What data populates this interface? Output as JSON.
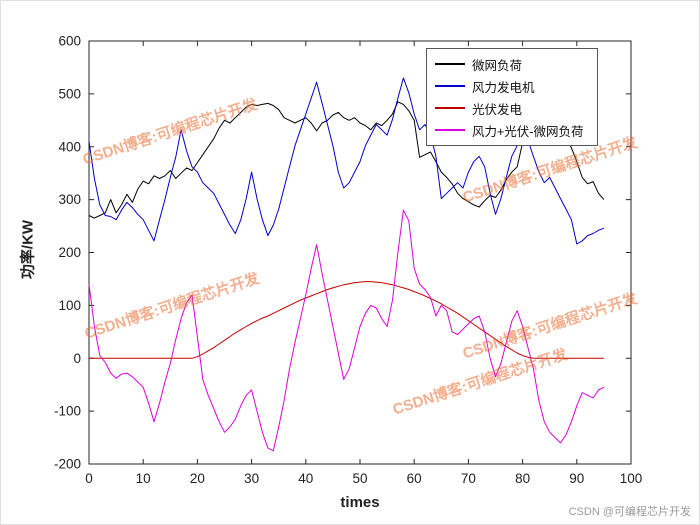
{
  "figure": {
    "background": "#ffffff"
  },
  "chart_data": {
    "type": "line",
    "title": "",
    "xlabel": "times",
    "ylabel": "功率/KW",
    "xlim": [
      0,
      100
    ],
    "ylim": [
      -200,
      600
    ],
    "xticks": [
      0,
      10,
      20,
      30,
      40,
      50,
      60,
      70,
      80,
      90,
      100
    ],
    "yticks": [
      -200,
      -100,
      0,
      100,
      200,
      300,
      400,
      500,
      600
    ],
    "grid": false,
    "legend_position": "top-right-inside",
    "x": [
      0,
      1,
      2,
      3,
      4,
      5,
      6,
      7,
      8,
      9,
      10,
      11,
      12,
      13,
      14,
      15,
      16,
      17,
      18,
      19,
      20,
      21,
      22,
      23,
      24,
      25,
      26,
      27,
      28,
      29,
      30,
      31,
      32,
      33,
      34,
      35,
      36,
      37,
      38,
      39,
      40,
      41,
      42,
      43,
      44,
      45,
      46,
      47,
      48,
      49,
      50,
      51,
      52,
      53,
      54,
      55,
      56,
      57,
      58,
      59,
      60,
      61,
      62,
      63,
      64,
      65,
      66,
      67,
      68,
      69,
      70,
      71,
      72,
      73,
      74,
      75,
      76,
      77,
      78,
      79,
      80,
      81,
      82,
      83,
      84,
      85,
      86,
      87,
      88,
      89,
      90,
      91,
      92,
      93,
      94,
      95
    ],
    "series": [
      {
        "name": "微网负荷",
        "color": "#000000",
        "values": [
          270,
          265,
          270,
          275,
          300,
          275,
          290,
          310,
          295,
          320,
          335,
          330,
          345,
          340,
          345,
          355,
          340,
          350,
          360,
          355,
          370,
          385,
          400,
          415,
          435,
          450,
          445,
          455,
          465,
          475,
          480,
          478,
          480,
          482,
          478,
          470,
          455,
          450,
          445,
          450,
          455,
          445,
          430,
          445,
          450,
          460,
          465,
          455,
          450,
          455,
          445,
          440,
          432,
          445,
          440,
          450,
          462,
          485,
          480,
          468,
          450,
          380,
          385,
          390,
          372,
          352,
          342,
          330,
          312,
          302,
          296,
          290,
          286,
          298,
          308,
          304,
          318,
          338,
          352,
          362,
          408,
          420,
          414,
          428,
          492,
          478,
          458,
          432,
          420,
          398,
          372,
          342,
          330,
          334,
          312,
          300
        ]
      },
      {
        "name": "风力发电机",
        "color": "#0000C8",
        "values": [
          410,
          340,
          290,
          270,
          268,
          262,
          280,
          295,
          285,
          272,
          262,
          242,
          222,
          262,
          300,
          342,
          380,
          432,
          392,
          362,
          352,
          332,
          322,
          312,
          292,
          272,
          252,
          236,
          262,
          302,
          352,
          302,
          262,
          232,
          252,
          282,
          322,
          362,
          402,
          432,
          462,
          492,
          522,
          482,
          442,
          402,
          352,
          322,
          332,
          352,
          372,
          402,
          422,
          442,
          432,
          422,
          452,
          492,
          530,
          502,
          462,
          432,
          442,
          422,
          382,
          302,
          312,
          322,
          332,
          322,
          352,
          372,
          382,
          362,
          312,
          272,
          302,
          342,
          382,
          402,
          422,
          412,
          382,
          352,
          332,
          342,
          322,
          302,
          282,
          262,
          216,
          222,
          232,
          236,
          242,
          246
        ]
      },
      {
        "name": "光伏发电",
        "color": "#C00000",
        "values": [
          0,
          0,
          0,
          0,
          0,
          0,
          0,
          0,
          0,
          0,
          0,
          0,
          0,
          0,
          0,
          0,
          0,
          0,
          0,
          0,
          3,
          8,
          14,
          20,
          27,
          34,
          41,
          48,
          54,
          60,
          66,
          71,
          76,
          80,
          85,
          90,
          95,
          100,
          105,
          110,
          114,
          118,
          122,
          126,
          130,
          133,
          136,
          139,
          141,
          143,
          144,
          145,
          145,
          144,
          143,
          141,
          139,
          136,
          133,
          130,
          126,
          122,
          118,
          113,
          108,
          103,
          97,
          91,
          85,
          78,
          71,
          64,
          57,
          50,
          43,
          36,
          29,
          22,
          16,
          10,
          5,
          2,
          0,
          0,
          0,
          0,
          0,
          0,
          0,
          0,
          0,
          0,
          0,
          0,
          0,
          0
        ]
      },
      {
        "name": "风力+光伏-微网负荷",
        "color": "#DD00DD",
        "values": [
          140,
          60,
          5,
          -8,
          -28,
          -38,
          -30,
          -28,
          -35,
          -45,
          -55,
          -85,
          -120,
          -85,
          -45,
          -10,
          35,
          75,
          105,
          120,
          40,
          -40,
          -70,
          -95,
          -120,
          -140,
          -130,
          -115,
          -90,
          -70,
          -60,
          -100,
          -140,
          -170,
          -175,
          -130,
          -80,
          -20,
          30,
          75,
          120,
          170,
          215,
          160,
          110,
          60,
          10,
          -40,
          -20,
          20,
          60,
          85,
          100,
          95,
          75,
          60,
          110,
          200,
          280,
          260,
          170,
          140,
          130,
          115,
          80,
          100,
          90,
          50,
          45,
          55,
          65,
          75,
          80,
          50,
          0,
          -35,
          -10,
          30,
          70,
          90,
          60,
          20,
          -20,
          -80,
          -120,
          -140,
          -150,
          -160,
          -145,
          -120,
          -90,
          -65,
          -70,
          -75,
          -60,
          -55
        ]
      }
    ]
  },
  "watermarks": {
    "diagonal_text": "CSDN博客:可编程芯片开发",
    "corner_text": "CSDN @可编程芯片开发"
  }
}
